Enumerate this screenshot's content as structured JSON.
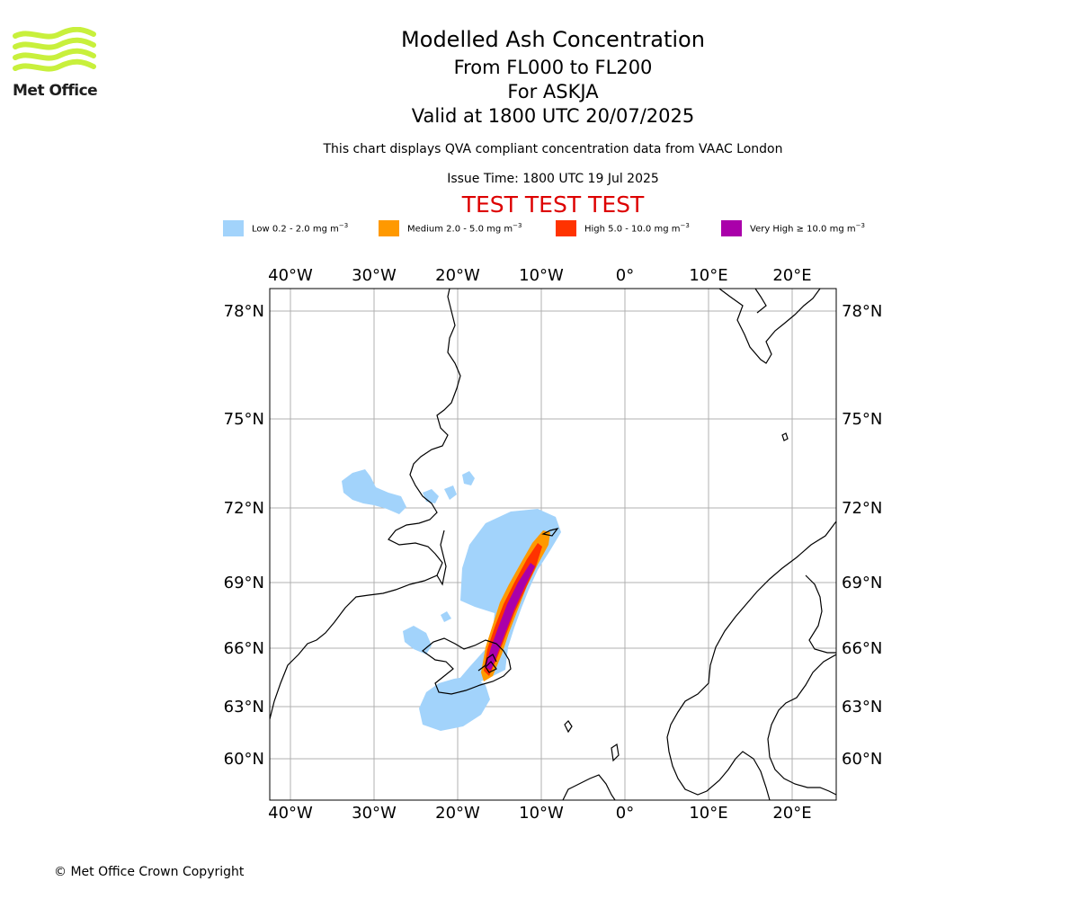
{
  "header": {
    "title": "Modelled Ash Concentration",
    "flight_levels": "From FL000 to FL200",
    "volcano": "For ASKJA",
    "valid_time": "Valid at 1800 UTC 20/07/2025",
    "description": "This chart displays QVA compliant concentration data from VAAC London",
    "issue_time": "Issue Time: 1800 UTC 19 Jul 2025",
    "test_banner": "TEST TEST TEST",
    "test_color": "#dd0000"
  },
  "logo": {
    "text": "Met Office",
    "wave_color": "#c8f03c",
    "icon": "met-office-waves-icon"
  },
  "legend": [
    {
      "label": "Low 0.2 - 2.0 mg m",
      "unit_exp": "−3",
      "color": "#a2d3fb"
    },
    {
      "label": "Medium 2.0 - 5.0 mg m",
      "unit_exp": "−3",
      "color": "#ff9900"
    },
    {
      "label": "High 5.0 - 10.0 mg m",
      "unit_exp": "−3",
      "color": "#ff3300"
    },
    {
      "label": "Very High  ≥  10.0 mg m",
      "unit_exp": "−3",
      "color": "#aa00aa"
    }
  ],
  "map": {
    "lon_labels": [
      "40°W",
      "30°W",
      "20°W",
      "10°W",
      "0°",
      "10°E",
      "20°E"
    ],
    "lat_labels": [
      "78°N",
      "75°N",
      "72°N",
      "69°N",
      "66°N",
      "63°N",
      "60°N"
    ],
    "grid": true
  },
  "footer": {
    "copyright": "© Met Office Crown Copyright"
  }
}
